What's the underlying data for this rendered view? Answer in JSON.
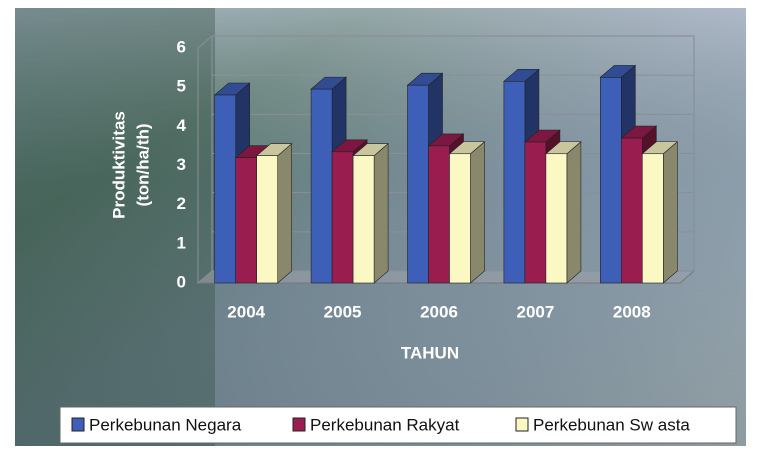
{
  "chart_data": {
    "type": "bar3d",
    "categories": [
      "2004",
      "2005",
      "2006",
      "2007",
      "2008"
    ],
    "series": [
      {
        "name": "Perkebunan Negara",
        "color": "#3d5fb8",
        "values": [
          4.8,
          4.95,
          5.05,
          5.15,
          5.25
        ]
      },
      {
        "name": "Perkebunan Rakyat",
        "color": "#9a1d50",
        "values": [
          3.2,
          3.35,
          3.5,
          3.6,
          3.7
        ]
      },
      {
        "name": "Perkebunan Sw asta",
        "color": "#fbf8c4",
        "values": [
          3.25,
          3.25,
          3.3,
          3.3,
          3.3
        ]
      }
    ],
    "ylim": [
      0,
      6
    ],
    "yticks": [
      0,
      1,
      2,
      3,
      4,
      5,
      6
    ],
    "grid": true,
    "ylabel": [
      "Produktivitas",
      "(ton/ha/th)"
    ],
    "xlabel": "TAHUN",
    "legend": "bottom"
  }
}
